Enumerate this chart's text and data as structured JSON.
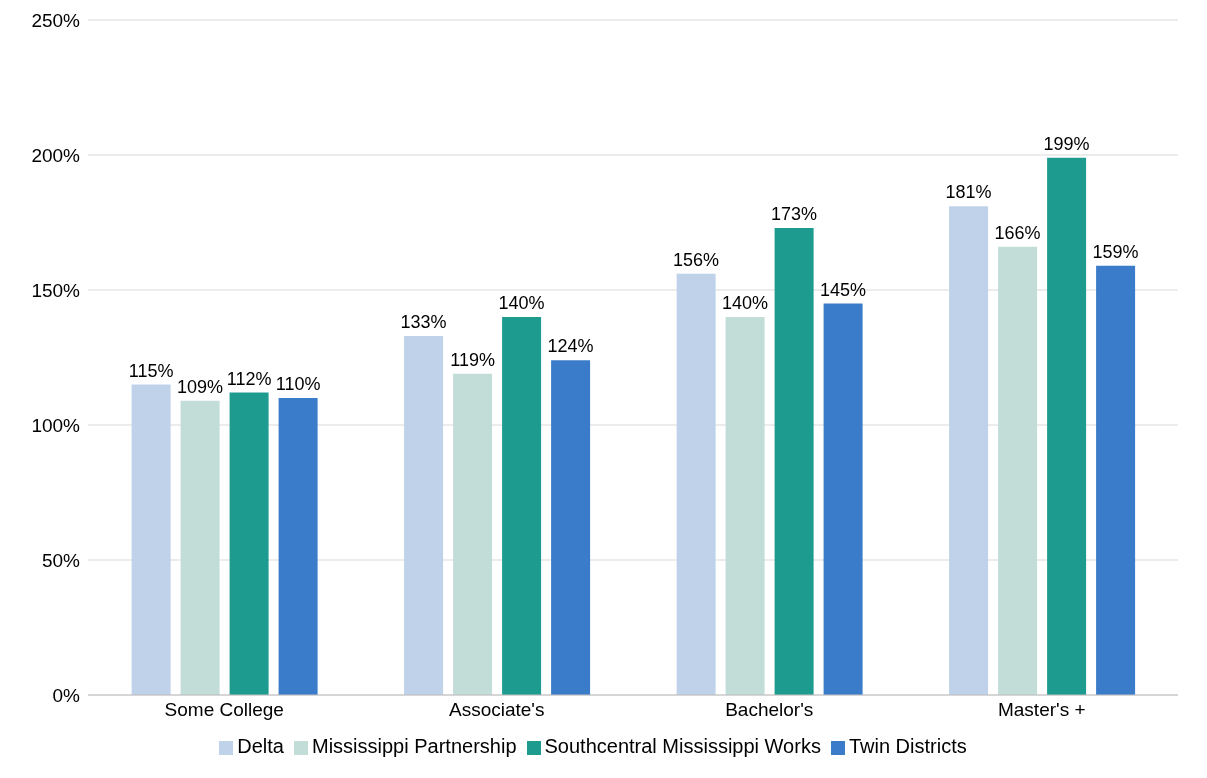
{
  "chart_data": {
    "type": "bar",
    "categories": [
      "Some College",
      "Associate's",
      "Bachelor's",
      "Master's +"
    ],
    "series": [
      {
        "name": "Delta",
        "color": "#bfd2ea",
        "values": [
          115,
          133,
          156,
          181
        ],
        "value_labels": [
          "115%",
          "133%",
          "156%",
          "181%"
        ]
      },
      {
        "name": "Mississippi Partnership",
        "color": "#c2ddd8",
        "values": [
          109,
          119,
          140,
          166
        ],
        "value_labels": [
          "109%",
          "119%",
          "140%",
          "166%"
        ]
      },
      {
        "name": "Southcentral Mississippi Works",
        "color": "#1e9b8f",
        "values": [
          112,
          140,
          173,
          199
        ],
        "value_labels": [
          "112%",
          "140%",
          "173%",
          "199%"
        ]
      },
      {
        "name": "Twin Districts",
        "color": "#3a7cc9",
        "values": [
          110,
          124,
          145,
          159
        ],
        "value_labels": [
          "110%",
          "124%",
          "145%",
          "159%"
        ]
      }
    ],
    "ylim": [
      0,
      250
    ],
    "yticks": [
      {
        "value": 0,
        "label": "0%"
      },
      {
        "value": 50,
        "label": "50%"
      },
      {
        "value": 100,
        "label": "100%"
      },
      {
        "value": 150,
        "label": "150%"
      },
      {
        "value": 200,
        "label": "200%"
      },
      {
        "value": 250,
        "label": "250%"
      }
    ],
    "grid": "y",
    "legend": "bottom"
  }
}
